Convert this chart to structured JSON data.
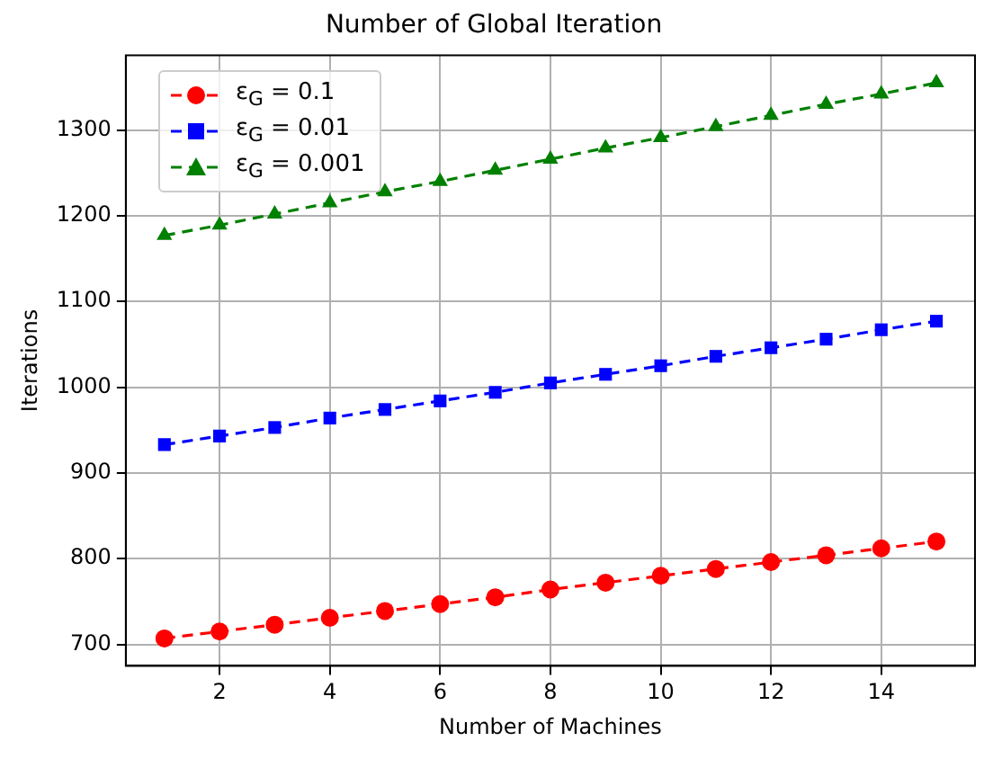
{
  "chart_data": {
    "type": "line",
    "title": "Number of Global Iteration",
    "xlabel": "Number of Machines",
    "ylabel": "Iterations",
    "x": [
      1,
      2,
      3,
      4,
      5,
      6,
      7,
      8,
      9,
      10,
      11,
      12,
      13,
      14,
      15
    ],
    "series": [
      {
        "name": "ε$_{G}$ = 0.1",
        "color": "#ff0000",
        "marker": "circle",
        "values": [
          707,
          715,
          723,
          731,
          739,
          747,
          755,
          764,
          772,
          780,
          788,
          796,
          804,
          812,
          820
        ]
      },
      {
        "name": "ε$_{G}$ = 0.01",
        "color": "#0000ff",
        "marker": "square",
        "values": [
          933,
          943,
          953,
          964,
          974,
          984,
          994,
          1005,
          1015,
          1025,
          1036,
          1046,
          1056,
          1067,
          1077
        ]
      },
      {
        "name": "ε$_{G}$ = 0.001",
        "color": "#008000",
        "marker": "triangle",
        "values": [
          1177,
          1189,
          1202,
          1215,
          1228,
          1240,
          1253,
          1266,
          1279,
          1291,
          1304,
          1317,
          1330,
          1342,
          1355
        ]
      }
    ],
    "xlim": [
      0.3,
      15.7
    ],
    "xticks": [
      2,
      4,
      6,
      8,
      10,
      12,
      14
    ],
    "ylim": [
      675,
      1387
    ],
    "yticks": [
      700,
      800,
      900,
      1000,
      1100,
      1200,
      1300
    ],
    "grid": true,
    "legend": "top left",
    "line_style": "dashed"
  }
}
